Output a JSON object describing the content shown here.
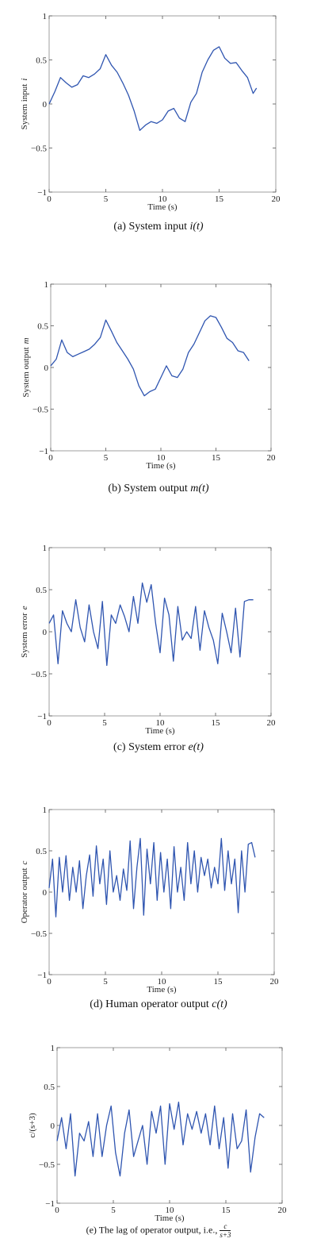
{
  "chart_data": [
    {
      "type": "line",
      "id": "a",
      "xlabel": "Time (s)",
      "ylabel": "System input",
      "ylabel_var": "i",
      "xlim": [
        0,
        20
      ],
      "ylim": [
        -1,
        1
      ],
      "x_ticks": [
        "0",
        "5",
        "10",
        "15",
        "20"
      ],
      "y_ticks": [
        "-1",
        "-0.5",
        "0",
        "0.5",
        "1"
      ],
      "caption_prefix": "(a) System input ",
      "caption_math": "i(t)",
      "line_color": "#2f55b0",
      "x": [
        0,
        0.5,
        1,
        1.5,
        2,
        2.5,
        3,
        3.5,
        4,
        4.5,
        5,
        5.5,
        6,
        6.5,
        7,
        7.5,
        8,
        8.5,
        9,
        9.5,
        10,
        10.5,
        11,
        11.5,
        12,
        12.5,
        13,
        13.5,
        14,
        14.5,
        15,
        15.5,
        16,
        16.5,
        17,
        17.5,
        18,
        18.3
      ],
      "y": [
        0,
        0.14,
        0.3,
        0.24,
        0.19,
        0.22,
        0.32,
        0.3,
        0.34,
        0.4,
        0.56,
        0.44,
        0.36,
        0.24,
        0.1,
        -0.08,
        -0.3,
        -0.24,
        -0.2,
        -0.22,
        -0.18,
        -0.08,
        -0.05,
        -0.16,
        -0.2,
        0.02,
        0.12,
        0.36,
        0.5,
        0.61,
        0.65,
        0.52,
        0.46,
        0.47,
        0.38,
        0.3,
        0.12,
        0.18
      ]
    },
    {
      "type": "line",
      "id": "b",
      "xlabel": "Time (s)",
      "ylabel": "System output",
      "ylabel_var": "m",
      "xlim": [
        0,
        20
      ],
      "ylim": [
        -1,
        1
      ],
      "x_ticks": [
        "0",
        "5",
        "10",
        "15",
        "20"
      ],
      "y_ticks": [
        "-1",
        "-0.5",
        "0",
        "0.5",
        "1"
      ],
      "caption_prefix": "(b) System output ",
      "caption_math": "m(t)",
      "line_color": "#2f55b0",
      "x": [
        0,
        0.5,
        1,
        1.5,
        2,
        2.5,
        3,
        3.5,
        4,
        4.5,
        5,
        5.5,
        6,
        6.5,
        7,
        7.5,
        8,
        8.5,
        9,
        9.5,
        10,
        10.5,
        11,
        11.5,
        12,
        12.5,
        13,
        13.5,
        14,
        14.5,
        15,
        15.5,
        16,
        16.5,
        17,
        17.5,
        18
      ],
      "y": [
        0.02,
        0.1,
        0.33,
        0.18,
        0.13,
        0.16,
        0.19,
        0.22,
        0.28,
        0.36,
        0.57,
        0.44,
        0.3,
        0.2,
        0.1,
        -0.02,
        -0.22,
        -0.34,
        -0.29,
        -0.26,
        -0.12,
        0.02,
        -0.1,
        -0.12,
        -0.02,
        0.18,
        0.28,
        0.42,
        0.56,
        0.62,
        0.6,
        0.48,
        0.35,
        0.3,
        0.2,
        0.18,
        0.08
      ]
    },
    {
      "type": "line",
      "id": "c",
      "xlabel": "Time (s)",
      "ylabel": "System error",
      "ylabel_var": "e",
      "xlim": [
        0,
        20
      ],
      "ylim": [
        -1,
        1
      ],
      "x_ticks": [
        "0",
        "5",
        "10",
        "15",
        "20"
      ],
      "y_ticks": [
        "-1",
        "-0.5",
        "0",
        "0.5",
        "1"
      ],
      "caption_prefix": "(c) System error ",
      "caption_math": "e(t)",
      "line_color": "#2f55b0",
      "x": [
        0,
        0.4,
        0.8,
        1.2,
        1.6,
        2,
        2.4,
        2.8,
        3.2,
        3.6,
        4,
        4.4,
        4.8,
        5.2,
        5.6,
        6,
        6.4,
        6.8,
        7.2,
        7.6,
        8,
        8.4,
        8.8,
        9.2,
        9.6,
        10,
        10.4,
        10.8,
        11.2,
        11.6,
        12,
        12.4,
        12.8,
        13.2,
        13.6,
        14,
        14.4,
        14.8,
        15.2,
        15.6,
        16,
        16.4,
        16.8,
        17.2,
        17.6,
        18,
        18.4
      ],
      "y": [
        0.1,
        0.2,
        -0.38,
        0.25,
        0.1,
        0.0,
        0.38,
        0.05,
        -0.12,
        0.32,
        0.0,
        -0.2,
        0.36,
        -0.4,
        0.2,
        0.1,
        0.32,
        0.18,
        0.0,
        0.42,
        0.1,
        0.58,
        0.35,
        0.56,
        0.1,
        -0.25,
        0.4,
        0.2,
        -0.35,
        0.3,
        -0.1,
        0.0,
        -0.08,
        0.3,
        -0.22,
        0.25,
        0.05,
        -0.1,
        -0.38,
        0.22,
        0.0,
        -0.25,
        0.28,
        -0.3,
        0.36,
        0.38,
        0.38
      ]
    },
    {
      "type": "line",
      "id": "d",
      "xlabel": "Time (s)",
      "ylabel": "Operator output",
      "ylabel_var": "c",
      "xlim": [
        0,
        20
      ],
      "ylim": [
        -1,
        1
      ],
      "x_ticks": [
        "0",
        "5",
        "10",
        "15",
        "20"
      ],
      "y_ticks": [
        "-1",
        "-0.5",
        "0",
        "0.5",
        "1"
      ],
      "caption_prefix": "(d) Human operator output ",
      "caption_math": "c(t)",
      "line_color": "#2f55b0",
      "x": [
        0,
        0.3,
        0.6,
        0.9,
        1.2,
        1.5,
        1.8,
        2.1,
        2.4,
        2.7,
        3,
        3.3,
        3.6,
        3.9,
        4.2,
        4.5,
        4.8,
        5.1,
        5.4,
        5.7,
        6,
        6.3,
        6.6,
        6.9,
        7.2,
        7.5,
        7.8,
        8.1,
        8.4,
        8.7,
        9,
        9.3,
        9.6,
        9.9,
        10.2,
        10.5,
        10.8,
        11.1,
        11.4,
        11.7,
        12,
        12.3,
        12.6,
        12.9,
        13.2,
        13.5,
        13.8,
        14.1,
        14.4,
        14.7,
        15,
        15.3,
        15.6,
        15.9,
        16.2,
        16.5,
        16.8,
        17.1,
        17.4,
        17.7,
        18,
        18.3
      ],
      "y": [
        0.05,
        0.4,
        -0.3,
        0.42,
        0.0,
        0.44,
        -0.1,
        0.3,
        0.0,
        0.38,
        -0.2,
        0.2,
        0.45,
        -0.05,
        0.56,
        0.1,
        0.4,
        -0.15,
        0.5,
        0.0,
        0.2,
        -0.1,
        0.28,
        0.02,
        0.62,
        -0.2,
        0.3,
        0.65,
        -0.28,
        0.52,
        0.1,
        0.6,
        -0.1,
        0.48,
        0.0,
        0.4,
        -0.2,
        0.55,
        0.0,
        0.3,
        -0.1,
        0.6,
        0.1,
        0.5,
        0.0,
        0.42,
        0.2,
        0.4,
        0.05,
        0.3,
        0.1,
        0.65,
        0.02,
        0.5,
        0.1,
        0.4,
        -0.25,
        0.5,
        0.0,
        0.58,
        0.6,
        0.42
      ]
    },
    {
      "type": "line",
      "id": "e",
      "xlabel": "Time (s)",
      "ylabel": "c/(s+3)",
      "xlim": [
        0,
        20
      ],
      "ylim": [
        -1,
        1
      ],
      "x_ticks": [
        "0",
        "5",
        "10",
        "15",
        "20"
      ],
      "y_ticks": [
        "-1",
        "-0.5",
        "0",
        "0.5",
        "1"
      ],
      "caption_prefix": "(e) The lag of operator output, i.e., ",
      "caption_frac_num": "c",
      "caption_frac_den": "s+3",
      "line_color": "#2f55b0",
      "x": [
        0,
        0.4,
        0.8,
        1.2,
        1.6,
        2,
        2.4,
        2.8,
        3.2,
        3.6,
        4,
        4.4,
        4.8,
        5.2,
        5.6,
        6,
        6.4,
        6.8,
        7.2,
        7.6,
        8,
        8.4,
        8.8,
        9.2,
        9.6,
        10,
        10.4,
        10.8,
        11.2,
        11.6,
        12,
        12.4,
        12.8,
        13.2,
        13.6,
        14,
        14.4,
        14.8,
        15.2,
        15.6,
        16,
        16.4,
        16.8,
        17.2,
        17.6,
        18,
        18.4
      ],
      "y": [
        -0.2,
        0.1,
        -0.3,
        0.15,
        -0.65,
        -0.1,
        -0.2,
        0.05,
        -0.4,
        0.15,
        -0.4,
        0.0,
        0.25,
        -0.35,
        -0.65,
        -0.1,
        0.2,
        -0.4,
        -0.2,
        0.0,
        -0.5,
        0.18,
        -0.1,
        0.25,
        -0.5,
        0.28,
        -0.05,
        0.3,
        -0.25,
        0.15,
        -0.05,
        0.18,
        -0.1,
        0.15,
        -0.25,
        0.25,
        -0.3,
        0.1,
        -0.55,
        0.15,
        -0.3,
        -0.2,
        0.2,
        -0.6,
        -0.15,
        0.15,
        0.1
      ]
    }
  ]
}
